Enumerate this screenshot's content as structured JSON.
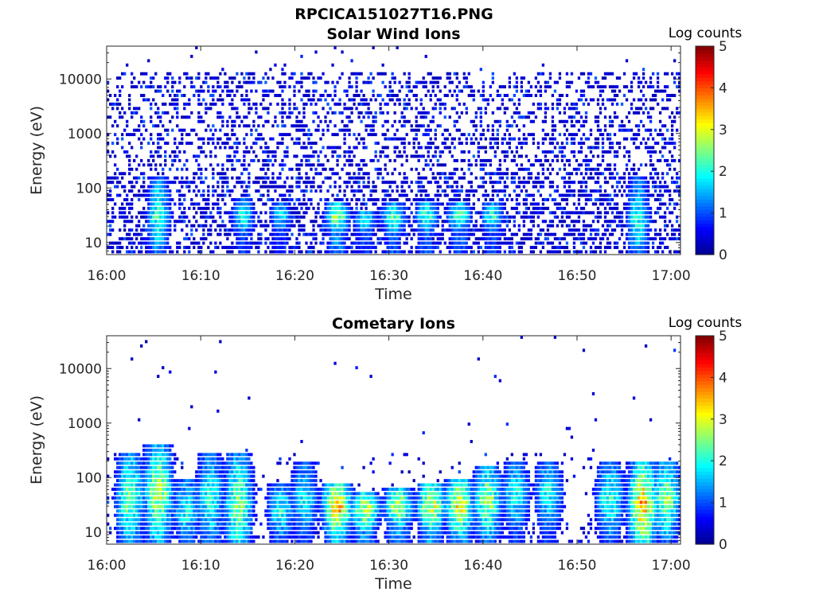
{
  "figure_title": "RPCICA151027T16.PNG",
  "colorbar_scale": [
    "#00008f",
    "#0000ff",
    "#0080ff",
    "#00ffff",
    "#80ff80",
    "#ffff00",
    "#ff8000",
    "#ff0000",
    "#800000"
  ],
  "chart_data": [
    {
      "type": "heatmap",
      "title": "Solar Wind Ions",
      "xlabel": "Time",
      "ylabel": "Energy (eV)",
      "x_ticks": [
        "16:00",
        "16:10",
        "16:20",
        "16:30",
        "16:40",
        "16:50",
        "17:00"
      ],
      "x_range": [
        "16:00",
        "17:01"
      ],
      "y_ticks": [
        "10",
        "100",
        "1000",
        "10000"
      ],
      "y_scale": "log",
      "y_range": [
        6,
        40000
      ],
      "colorbar": {
        "label": "Log counts",
        "ticks": [
          "0",
          "1",
          "2",
          "3",
          "4",
          "5"
        ],
        "range": [
          0,
          5
        ]
      },
      "features": [
        {
          "minute": 5.5,
          "energy_eV": 30,
          "peak_log_counts": 2.2,
          "top_eV": 150
        },
        {
          "minute": 14.5,
          "energy_eV": 30,
          "peak_log_counts": 2.0,
          "top_eV": 60
        },
        {
          "minute": 18.5,
          "energy_eV": 30,
          "peak_log_counts": 1.8,
          "top_eV": 50
        },
        {
          "minute": 24.5,
          "energy_eV": 30,
          "peak_log_counts": 2.8,
          "top_eV": 50
        },
        {
          "minute": 27.5,
          "energy_eV": 25,
          "peak_log_counts": 2.0,
          "top_eV": 40
        },
        {
          "minute": 30.5,
          "energy_eV": 28,
          "peak_log_counts": 2.3,
          "top_eV": 50
        },
        {
          "minute": 34.0,
          "energy_eV": 30,
          "peak_log_counts": 2.3,
          "top_eV": 50
        },
        {
          "minute": 37.5,
          "energy_eV": 30,
          "peak_log_counts": 2.4,
          "top_eV": 50
        },
        {
          "minute": 41.0,
          "energy_eV": 30,
          "peak_log_counts": 2.1,
          "top_eV": 50
        },
        {
          "minute": 56.5,
          "energy_eV": 25,
          "peak_log_counts": 2.0,
          "top_eV": 150
        }
      ]
    },
    {
      "type": "heatmap",
      "title": "Cometary Ions",
      "xlabel": "Time",
      "ylabel": "Energy (eV)",
      "x_ticks": [
        "16:00",
        "16:10",
        "16:20",
        "16:30",
        "16:40",
        "16:50",
        "17:00"
      ],
      "x_range": [
        "16:00",
        "17:01"
      ],
      "y_ticks": [
        "10",
        "100",
        "1000",
        "10000"
      ],
      "y_scale": "log",
      "y_range": [
        6,
        40000
      ],
      "colorbar": {
        "label": "Log counts",
        "ticks": [
          "0",
          "1",
          "2",
          "3",
          "4",
          "5"
        ],
        "range": [
          0,
          5
        ]
      },
      "features": [
        {
          "minute": 2.5,
          "energy_eV": 40,
          "peak_log_counts": 2.5,
          "top_eV": 300
        },
        {
          "minute": 5.5,
          "energy_eV": 50,
          "peak_log_counts": 2.9,
          "top_eV": 400
        },
        {
          "minute": 8.5,
          "energy_eV": 25,
          "peak_log_counts": 2.0,
          "top_eV": 100
        },
        {
          "minute": 11.0,
          "energy_eV": 40,
          "peak_log_counts": 2.1,
          "top_eV": 300
        },
        {
          "minute": 14.0,
          "energy_eV": 30,
          "peak_log_counts": 2.6,
          "top_eV": 300
        },
        {
          "minute": 18.5,
          "energy_eV": 25,
          "peak_log_counts": 2.0,
          "top_eV": 80
        },
        {
          "minute": 21.0,
          "energy_eV": 40,
          "peak_log_counts": 1.9,
          "top_eV": 200
        },
        {
          "minute": 24.5,
          "energy_eV": 28,
          "peak_log_counts": 3.6,
          "top_eV": 80
        },
        {
          "minute": 27.5,
          "energy_eV": 25,
          "peak_log_counts": 3.0,
          "top_eV": 50
        },
        {
          "minute": 31.0,
          "energy_eV": 30,
          "peak_log_counts": 3.0,
          "top_eV": 60
        },
        {
          "minute": 34.5,
          "energy_eV": 30,
          "peak_log_counts": 3.1,
          "top_eV": 80
        },
        {
          "minute": 37.5,
          "energy_eV": 30,
          "peak_log_counts": 3.1,
          "top_eV": 100
        },
        {
          "minute": 40.5,
          "energy_eV": 35,
          "peak_log_counts": 2.7,
          "top_eV": 150
        },
        {
          "minute": 43.5,
          "energy_eV": 50,
          "peak_log_counts": 2.0,
          "top_eV": 200
        },
        {
          "minute": 47.0,
          "energy_eV": 50,
          "peak_log_counts": 2.0,
          "top_eV": 200
        },
        {
          "minute": 53.5,
          "energy_eV": 40,
          "peak_log_counts": 2.2,
          "top_eV": 200
        },
        {
          "minute": 57.0,
          "energy_eV": 30,
          "peak_log_counts": 3.5,
          "top_eV": 200
        },
        {
          "minute": 59.5,
          "energy_eV": 40,
          "peak_log_counts": 2.6,
          "top_eV": 200
        }
      ]
    }
  ]
}
